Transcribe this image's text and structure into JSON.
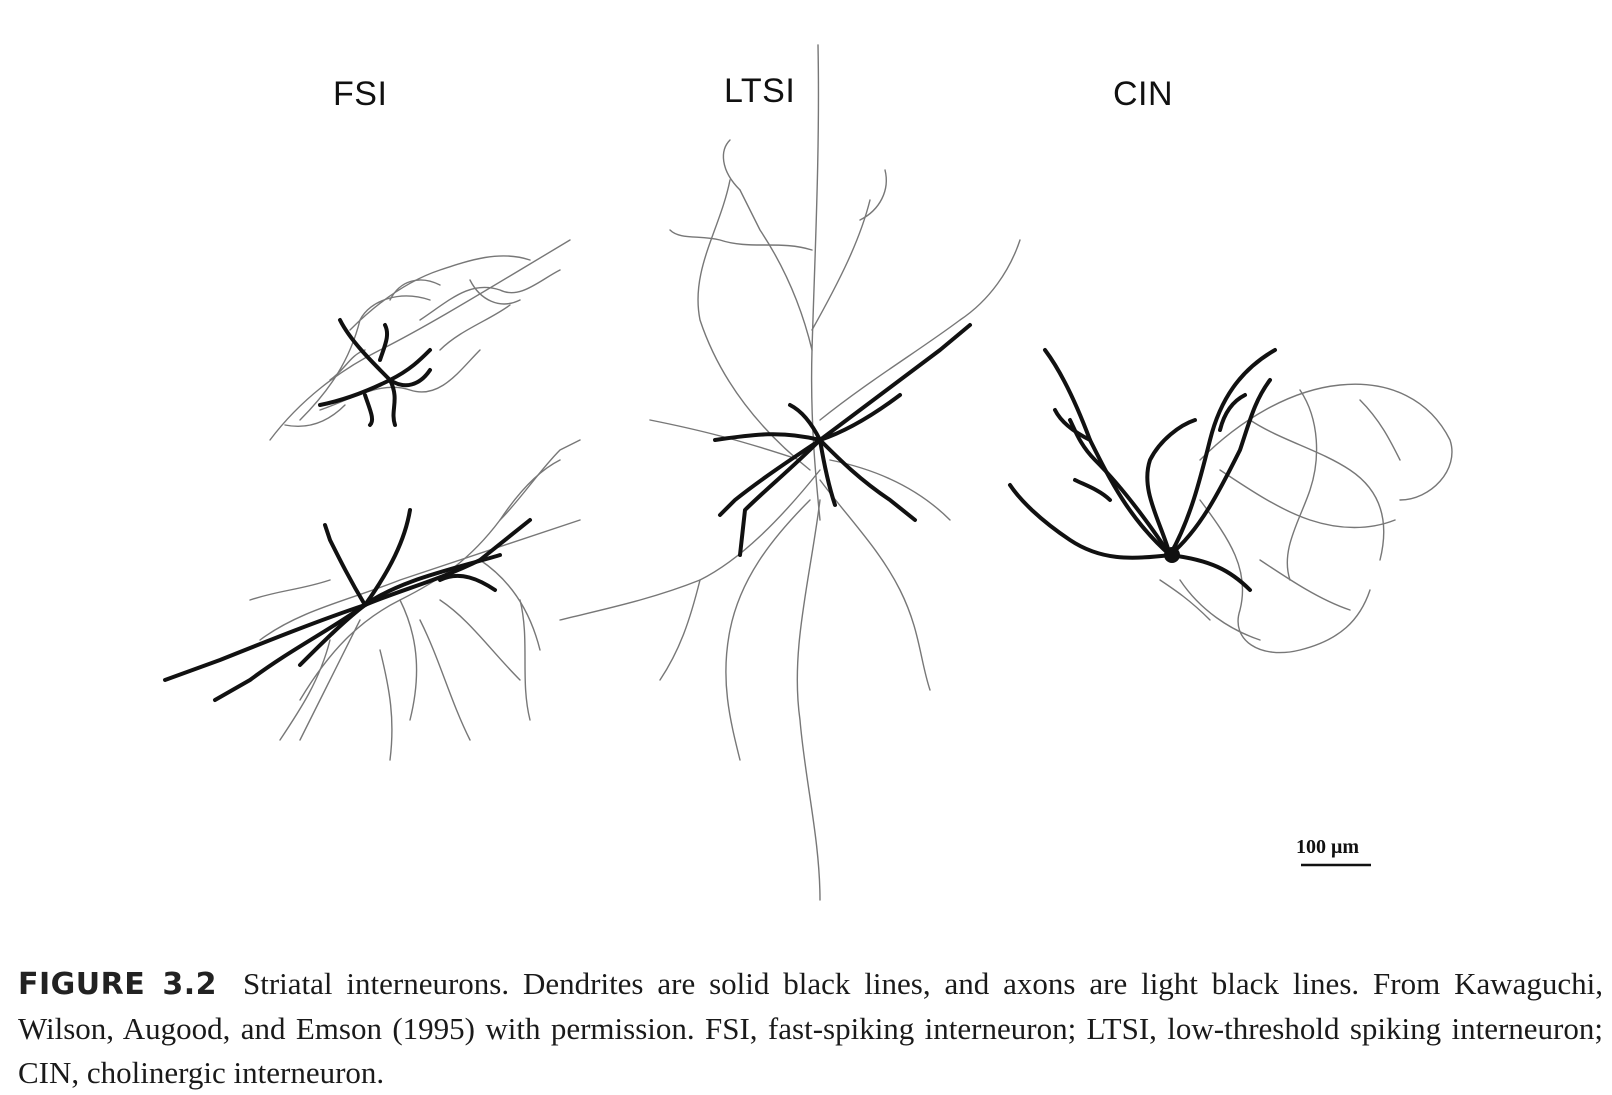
{
  "figure": {
    "panels": [
      {
        "id": "fsi",
        "label": "FSI"
      },
      {
        "id": "ltsi",
        "label": "LTSI"
      },
      {
        "id": "cin",
        "label": "CIN"
      }
    ],
    "scale_bar_label": "100 μm",
    "line_colors": {
      "dendrite": "#111111",
      "axon": "#777777"
    }
  },
  "caption": {
    "figure_number": "FIGURE 3.2",
    "text": "Striatal interneurons. Dendrites are solid black lines, and axons are light black lines. From Kawaguchi, Wilson, Augood, and Emson (1995) with permission. FSI, fast-spiking interneuron; LTSI, low-threshold spiking interneuron; CIN, cholinergic interneuron."
  }
}
